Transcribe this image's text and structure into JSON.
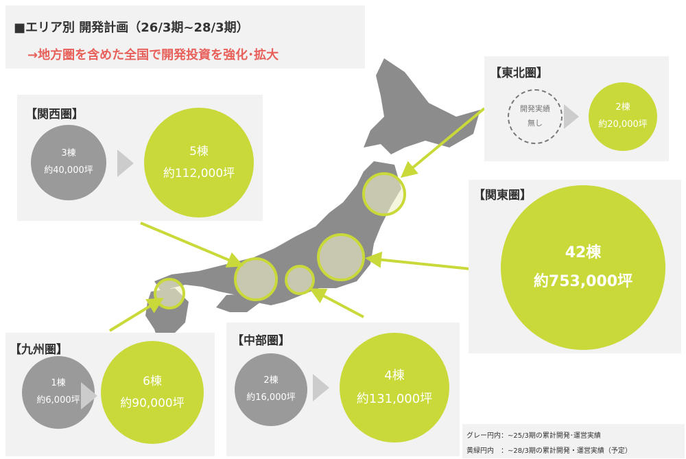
{
  "header": {
    "title": "■エリア別 開発計画（26/3期~28/3期）",
    "subtitle": "→地方圏を含めた全国で開発投資を強化･拡大"
  },
  "regions": [
    {
      "name": "【東北圏】",
      "before": [
        "開発実績",
        "無し"
      ],
      "after": [
        "2棟",
        "約20,000坪"
      ]
    },
    {
      "name": "【関西圏】",
      "before": [
        "3棟",
        "約40,000坪"
      ],
      "after": [
        "5棟",
        "約112,000坪"
      ]
    },
    {
      "name": "【関東圏】",
      "after": [
        "42棟",
        "約753,000坪"
      ]
    },
    {
      "name": "【九州圏】",
      "before": [
        "1棟",
        "約6,000坪"
      ],
      "after": [
        "6棟",
        "約90,000坪"
      ]
    },
    {
      "name": "【中部圏】",
      "before": [
        "2棟",
        "約16,000坪"
      ],
      "after": [
        "4棟",
        "約131,000坪"
      ]
    }
  ],
  "legend": [
    "グレー円内：~25/3期の累計開発･運営実績",
    "黄緑円内　：~28/3期の累計開発・運営実績（予定）"
  ]
}
